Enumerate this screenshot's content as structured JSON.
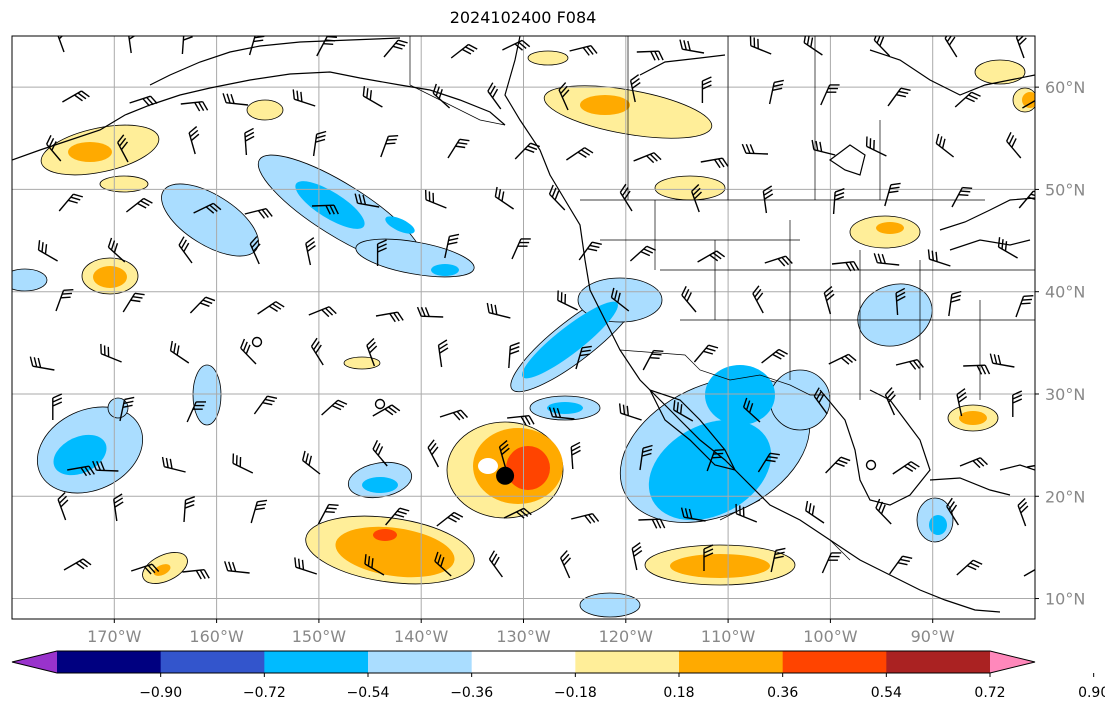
{
  "title": "2024102400 F084",
  "map": {
    "lon_min": -180,
    "lon_max": -80,
    "lat_min": 8,
    "lat_max": 65,
    "lon_ticks": [
      {
        "value": -170,
        "label": "170°W"
      },
      {
        "value": -160,
        "label": "160°W"
      },
      {
        "value": -150,
        "label": "150°W"
      },
      {
        "value": -140,
        "label": "140°W"
      },
      {
        "value": -130,
        "label": "130°W"
      },
      {
        "value": -120,
        "label": "120°W"
      },
      {
        "value": -110,
        "label": "110°W"
      },
      {
        "value": -100,
        "label": "100°W"
      },
      {
        "value": -90,
        "label": "90°W"
      }
    ],
    "lat_ticks": [
      {
        "value": 10,
        "label": "10°N"
      },
      {
        "value": 20,
        "label": "20°N"
      },
      {
        "value": 30,
        "label": "30°N"
      },
      {
        "value": 40,
        "label": "40°N"
      },
      {
        "value": 50,
        "label": "50°N"
      },
      {
        "value": 60,
        "label": "60°N"
      }
    ],
    "grid": true,
    "storm_center": {
      "lon": -131.8,
      "lat": 22.0
    }
  },
  "colorbar": {
    "colors": [
      "#9933cc",
      "#000080",
      "#3355cc",
      "#00bbff",
      "#aaddff",
      "#ffffff",
      "#ffee99",
      "#ffaa00",
      "#ff4400",
      "#aa2222",
      "#ff88bb"
    ],
    "tick_labels": [
      "−0.90",
      "−0.72",
      "−0.54",
      "−0.36",
      "−0.18",
      "0.18",
      "0.36",
      "0.54",
      "0.72",
      "0.90"
    ],
    "extend": "both"
  },
  "colors": {
    "lt_blue": "#aaddff",
    "blue": "#00bbff",
    "yellow": "#ffee99",
    "orange": "#ffaa00",
    "red": "#ff4400"
  }
}
